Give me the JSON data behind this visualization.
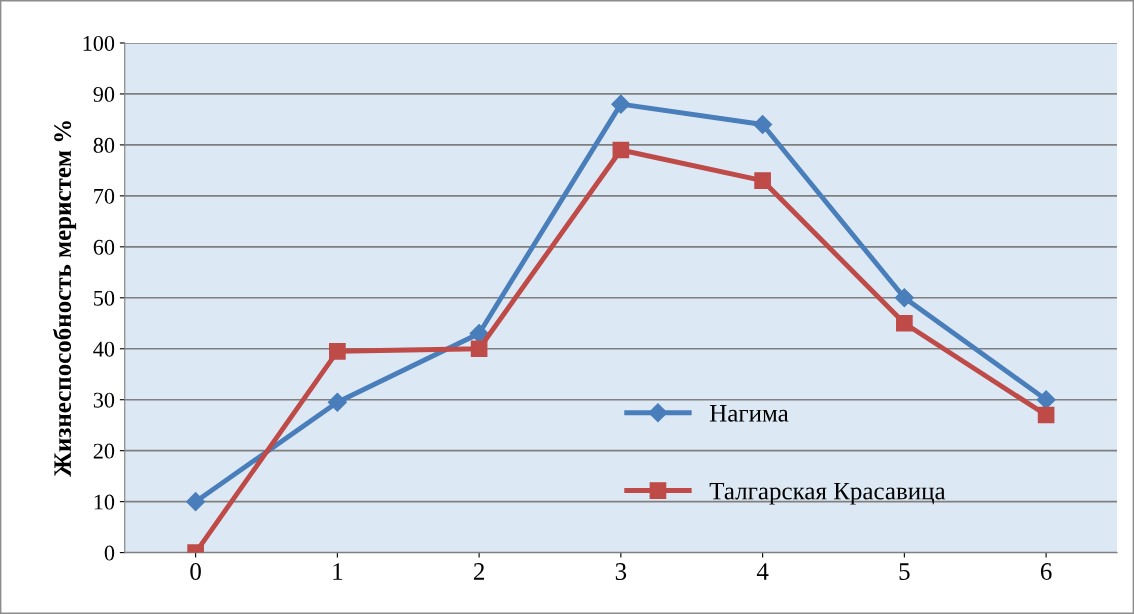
{
  "chart_data": {
    "type": "line",
    "ylabel": "Жизнеспособность меристем %",
    "categories": [
      "0",
      "1",
      "2",
      "3",
      "4",
      "5",
      "6"
    ],
    "series": [
      {
        "name": "Нагима",
        "color": "#4a7ebb",
        "marker": "diamond",
        "values": [
          10,
          29.5,
          43,
          88,
          84,
          50,
          30
        ]
      },
      {
        "name": "Талгарская Красавица",
        "color": "#be4b48",
        "marker": "square",
        "values": [
          0,
          39.5,
          40,
          79,
          73,
          45,
          27
        ]
      }
    ],
    "ylim": [
      0,
      100
    ],
    "yticks": [
      0,
      10,
      20,
      30,
      40,
      50,
      60,
      70,
      80,
      90,
      100
    ],
    "grid": "y",
    "legend": "bottom right",
    "line_style": "solid"
  }
}
